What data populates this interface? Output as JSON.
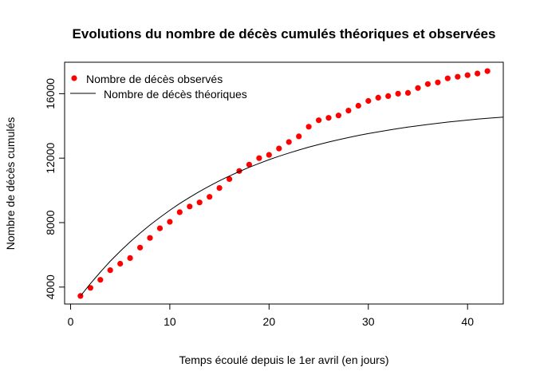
{
  "chart_data": {
    "type": "scatter",
    "title": "Evolutions du nombre de décès cumulés théoriques et observées",
    "xlabel": "Temps écoulé depuis le 1er avril (en jours)",
    "ylabel": "Nombre de décès cumulés",
    "xlim": [
      -0.6,
      43.6
    ],
    "ylim": [
      2950,
      17950
    ],
    "x_ticks": [
      0,
      10,
      20,
      30,
      40
    ],
    "y_ticks": [
      4000,
      8000,
      12000,
      16000
    ],
    "grid": false,
    "legend_position": "top-left",
    "series": [
      {
        "name": "Nombre de décès observés",
        "kind": "points",
        "color": "#ff0000",
        "x": [
          1,
          2,
          3,
          4,
          5,
          6,
          7,
          8,
          9,
          10,
          11,
          12,
          13,
          14,
          15,
          16,
          17,
          18,
          19,
          20,
          21,
          22,
          23,
          24,
          25,
          26,
          27,
          28,
          29,
          30,
          31,
          32,
          33,
          34,
          35,
          36,
          37,
          38,
          39,
          40,
          41,
          42
        ],
        "y": [
          3450,
          3950,
          4450,
          5050,
          5450,
          5800,
          6450,
          7050,
          7650,
          8050,
          8650,
          9000,
          9250,
          9600,
          10150,
          10700,
          11200,
          11600,
          12000,
          12200,
          12600,
          13000,
          13350,
          13950,
          14350,
          14500,
          14650,
          14950,
          15250,
          15550,
          15750,
          15850,
          16000,
          16050,
          16350,
          16600,
          16700,
          16950,
          17050,
          17150,
          17250,
          17400
        ]
      },
      {
        "name": "Nombre de décès théoriques",
        "kind": "line",
        "color": "#000000",
        "x": [
          1,
          2,
          3,
          4,
          5,
          6,
          7,
          8,
          9,
          10,
          11,
          12,
          13,
          14,
          15,
          16,
          17,
          18,
          19,
          20,
          21,
          22,
          23,
          24,
          25,
          26,
          27,
          28,
          29,
          30,
          31,
          32,
          33,
          34,
          35,
          36,
          37,
          38,
          39,
          40,
          41,
          42,
          43.6
        ],
        "y": [
          3450,
          4216,
          4931,
          5602,
          6224,
          6804,
          7345,
          7850,
          8323,
          8767,
          9181,
          9569,
          9933,
          10273,
          10592,
          10890,
          11169,
          11430,
          11674,
          11903,
          12117,
          12318,
          12505,
          12681,
          12846,
          13000,
          13144,
          13279,
          13405,
          13523,
          13634,
          13738,
          13835,
          13926,
          14011,
          14090,
          14165,
          14235,
          14300,
          14361,
          14419,
          14473,
          14550
        ]
      }
    ]
  }
}
